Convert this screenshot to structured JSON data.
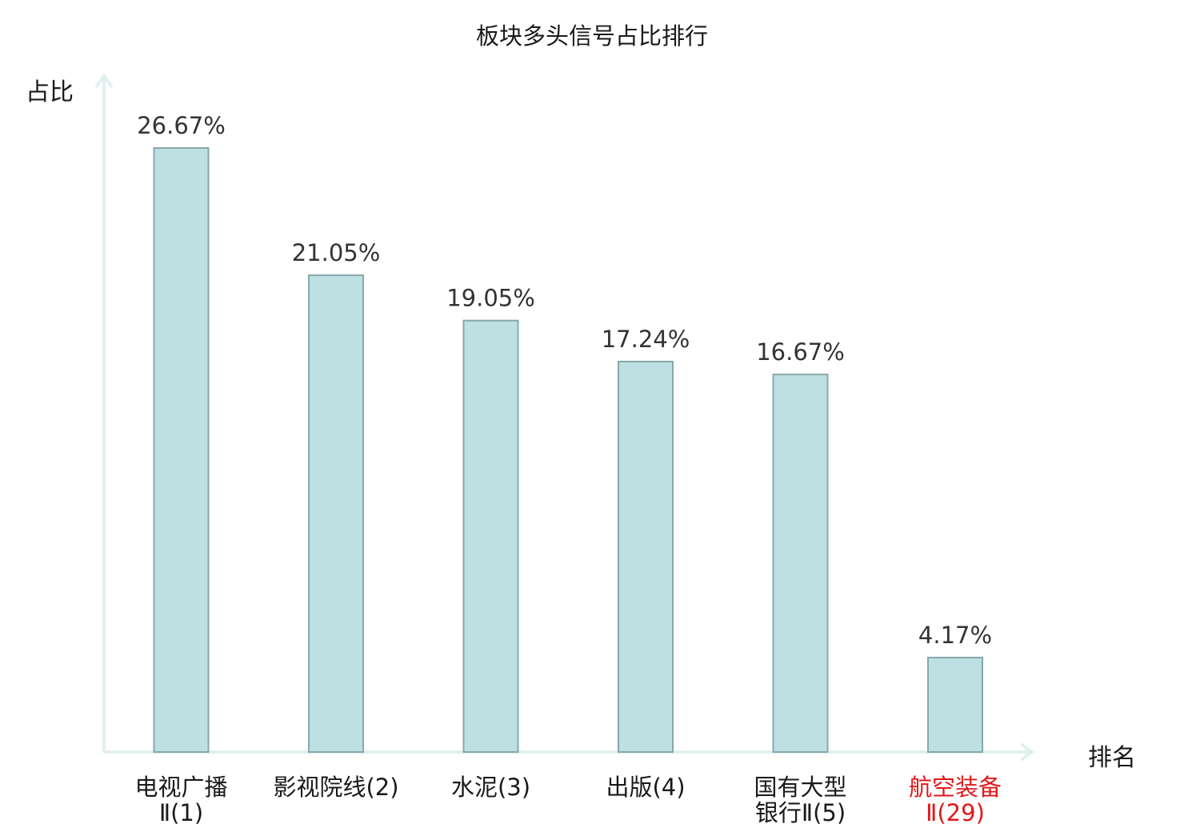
{
  "chart_data": {
    "type": "bar",
    "title": "板块多头信号占比排行",
    "ylabel": "占比",
    "xlabel": "排名",
    "ylim": [
      0,
      30
    ],
    "grid": false,
    "categories": [
      {
        "lines": [
          "电视广播",
          "Ⅱ(1)"
        ],
        "highlight": false
      },
      {
        "lines": [
          "影视院线(2)"
        ],
        "highlight": false
      },
      {
        "lines": [
          "水泥(3)"
        ],
        "highlight": false
      },
      {
        "lines": [
          "出版(4)"
        ],
        "highlight": false
      },
      {
        "lines": [
          "国有大型",
          "银行Ⅱ(5)"
        ],
        "highlight": false
      },
      {
        "lines": [
          "航空装备",
          "Ⅱ(29)"
        ],
        "highlight": true
      }
    ],
    "values": [
      26.67,
      21.05,
      19.05,
      17.24,
      16.67,
      4.17
    ],
    "value_labels": [
      "26.67%",
      "21.05%",
      "19.05%",
      "17.24%",
      "16.67%",
      "4.17%"
    ],
    "colors": {
      "bar_fill": "#bde0e3",
      "bar_stroke": "#86a8ab",
      "axis": "#dff1ef",
      "label_text": "#1a1a1a",
      "value_text": "#333333",
      "highlight_text": "#e0191b"
    }
  }
}
